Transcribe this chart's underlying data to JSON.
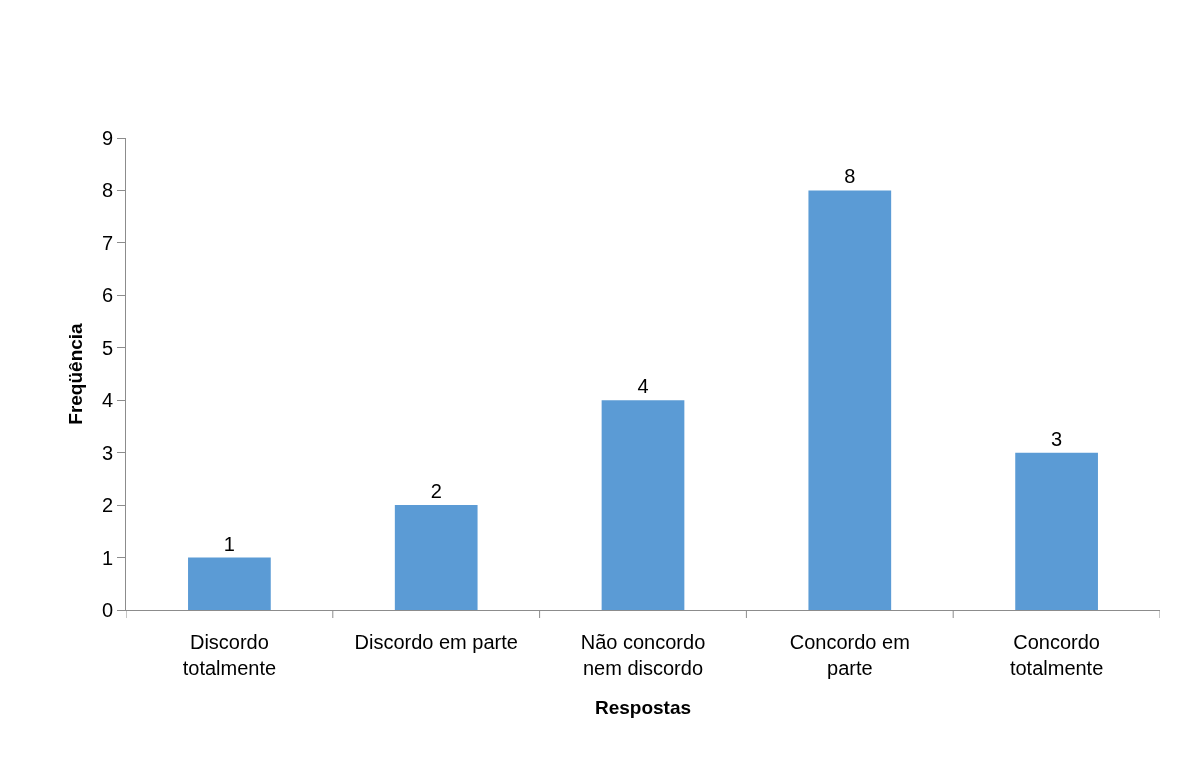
{
  "chart_data": {
    "type": "bar",
    "categories": [
      "Discordo\ntotalmente",
      "Discordo em parte",
      "Não concordo\nnem discordo",
      "Concordo em\nparte",
      "Concordo\ntotalmente"
    ],
    "values": [
      1,
      2,
      4,
      8,
      3
    ],
    "color": "#5b9bd5",
    "xlabel": "Respostas",
    "ylabel": "Freqüência",
    "ylim": [
      0,
      9
    ],
    "yticks": [
      0,
      1,
      2,
      3,
      4,
      5,
      6,
      7,
      8,
      9
    ],
    "data_labels": true
  }
}
